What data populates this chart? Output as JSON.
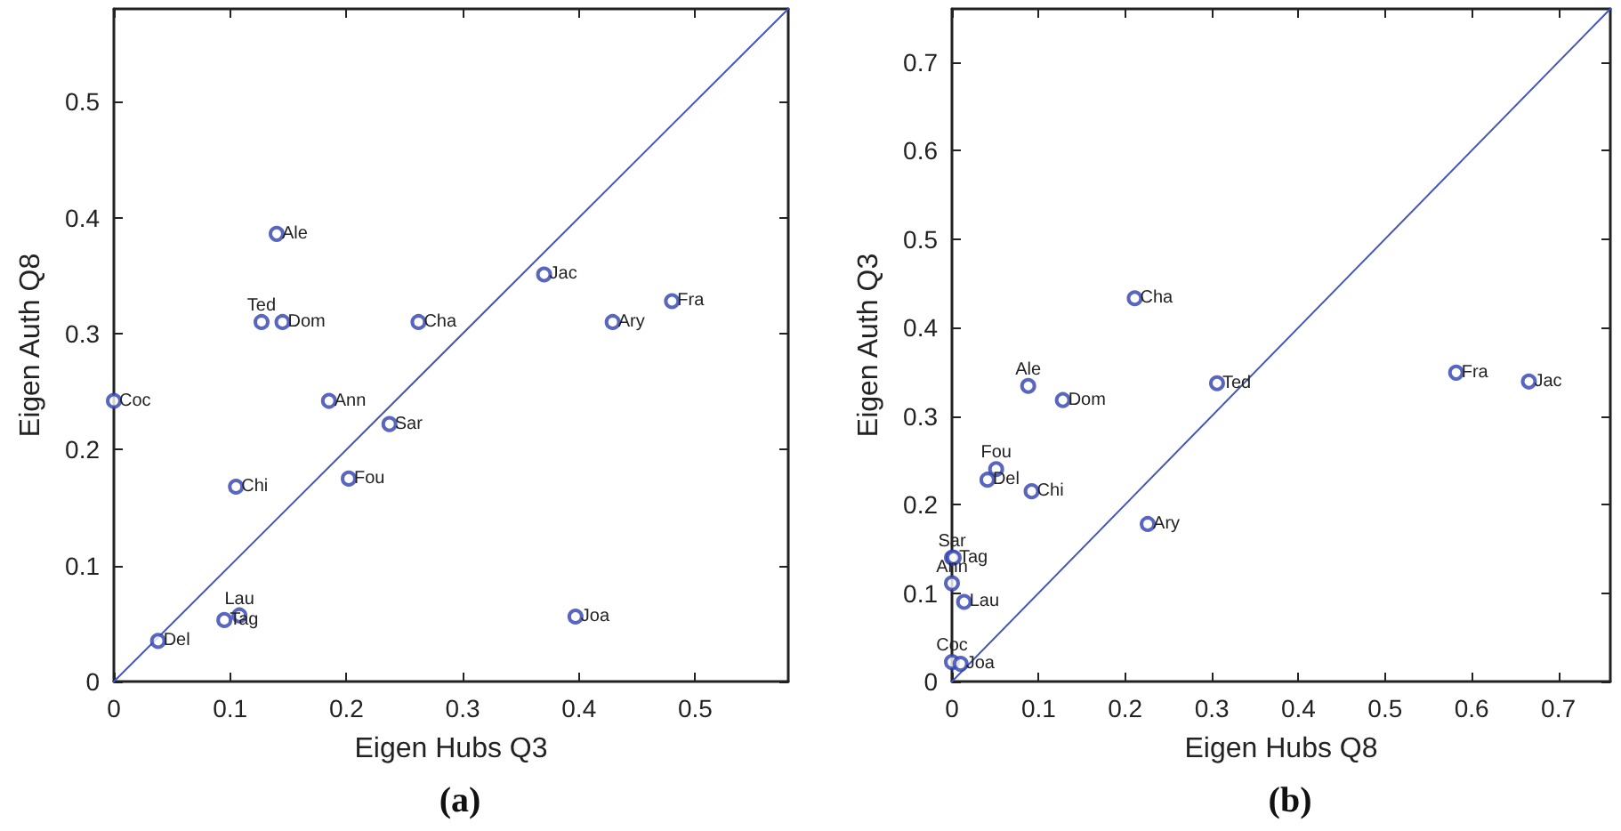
{
  "chart_data": [
    {
      "type": "scatter",
      "title": "(a)",
      "xlabel": "Eigen Hubs Q3",
      "ylabel": "Eigen Auth Q8",
      "xlim": [
        0,
        0.58
      ],
      "ylim": [
        0,
        0.58
      ],
      "xticks": [
        0,
        0.1,
        0.2,
        0.3,
        0.4,
        0.5
      ],
      "yticks": [
        0,
        0.1,
        0.2,
        0.3,
        0.4,
        0.5
      ],
      "line_style": "solid",
      "series": [
        {
          "marker": "circle",
          "color": "#3040b0",
          "x": [
            0.14,
            0.127,
            0.145,
            0.262,
            0.37,
            0.48,
            0.429,
            0,
            0.185,
            0.237,
            0.105,
            0.202,
            0.108,
            0.095,
            0.038,
            0.397
          ],
          "values": [
            0.386,
            0.31,
            0.31,
            0.31,
            0.351,
            0.328,
            0.31,
            0.242,
            0.242,
            0.222,
            0.168,
            0.175,
            0.057,
            0.053,
            0.035,
            0.056
          ]
        },
        {
          "type": "line",
          "color": "#4455bb",
          "x": [
            0,
            0.58
          ],
          "values": [
            0,
            0.58
          ]
        }
      ],
      "annotations": [
        {
          "text": "Ale",
          "x": 0.14,
          "y": 0.386
        },
        {
          "text": "Ted",
          "x": 0.127,
          "y": 0.31
        },
        {
          "text": "Dom",
          "x": 0.145,
          "y": 0.31
        },
        {
          "text": "Cha",
          "x": 0.262,
          "y": 0.31
        },
        {
          "text": "Jac",
          "x": 0.37,
          "y": 0.351
        },
        {
          "text": "Fra",
          "x": 0.48,
          "y": 0.328
        },
        {
          "text": "Ary",
          "x": 0.429,
          "y": 0.31
        },
        {
          "text": "Coc",
          "x": 0,
          "y": 0.242
        },
        {
          "text": "Ann",
          "x": 0.185,
          "y": 0.242
        },
        {
          "text": "Sar",
          "x": 0.237,
          "y": 0.222
        },
        {
          "text": "Chi",
          "x": 0.105,
          "y": 0.168
        },
        {
          "text": "Fou",
          "x": 0.202,
          "y": 0.175
        },
        {
          "text": "Lau",
          "x": 0.108,
          "y": 0.057
        },
        {
          "text": "Tag",
          "x": 0.095,
          "y": 0.053
        },
        {
          "text": "Del",
          "x": 0.038,
          "y": 0.035
        },
        {
          "text": "Joa",
          "x": 0.397,
          "y": 0.056
        }
      ]
    },
    {
      "type": "scatter",
      "title": "(b)",
      "xlabel": "Eigen Hubs Q8",
      "ylabel": "Eigen Auth Q3",
      "xlim": [
        0,
        0.76
      ],
      "ylim": [
        0,
        0.76
      ],
      "xticks": [
        0,
        0.1,
        0.2,
        0.3,
        0.4,
        0.5,
        0.6,
        0.7
      ],
      "yticks": [
        0,
        0.1,
        0.2,
        0.3,
        0.4,
        0.5,
        0.6,
        0.7
      ],
      "line_style": "solid",
      "series": [
        {
          "marker": "circle",
          "color": "#3040b0",
          "x": [
            0.211,
            0.088,
            0.128,
            0.306,
            0.582,
            0.666,
            0.051,
            0.041,
            0.092,
            0.226,
            0,
            0.002,
            0,
            0.014,
            0,
            0.01
          ],
          "values": [
            0.433,
            0.334,
            0.318,
            0.337,
            0.349,
            0.339,
            0.24,
            0.228,
            0.215,
            0.178,
            0.14,
            0.14,
            0.111,
            0.09,
            0.022,
            0.02
          ]
        },
        {
          "type": "line",
          "color": "#4455bb",
          "x": [
            0,
            0.76
          ],
          "values": [
            0,
            0.76
          ]
        }
      ],
      "annotations": [
        {
          "text": "Cha",
          "x": 0.211,
          "y": 0.433
        },
        {
          "text": "Ale",
          "x": 0.088,
          "y": 0.334
        },
        {
          "text": "Dom",
          "x": 0.128,
          "y": 0.318
        },
        {
          "text": "Ted",
          "x": 0.306,
          "y": 0.337
        },
        {
          "text": "Fra",
          "x": 0.582,
          "y": 0.349
        },
        {
          "text": "Jac",
          "x": 0.666,
          "y": 0.339
        },
        {
          "text": "Fou",
          "x": 0.051,
          "y": 0.24
        },
        {
          "text": "Del",
          "x": 0.041,
          "y": 0.228
        },
        {
          "text": "Chi",
          "x": 0.092,
          "y": 0.215
        },
        {
          "text": "Ary",
          "x": 0.226,
          "y": 0.178
        },
        {
          "text": "Sar",
          "x": 0,
          "y": 0.14
        },
        {
          "text": "Tag",
          "x": 0.002,
          "y": 0.14
        },
        {
          "text": "Ann",
          "x": 0,
          "y": 0.111
        },
        {
          "text": "Lau",
          "x": 0.014,
          "y": 0.09
        },
        {
          "text": "Coc",
          "x": 0,
          "y": 0.022
        },
        {
          "text": "Joa",
          "x": 0.01,
          "y": 0.02
        }
      ]
    }
  ]
}
